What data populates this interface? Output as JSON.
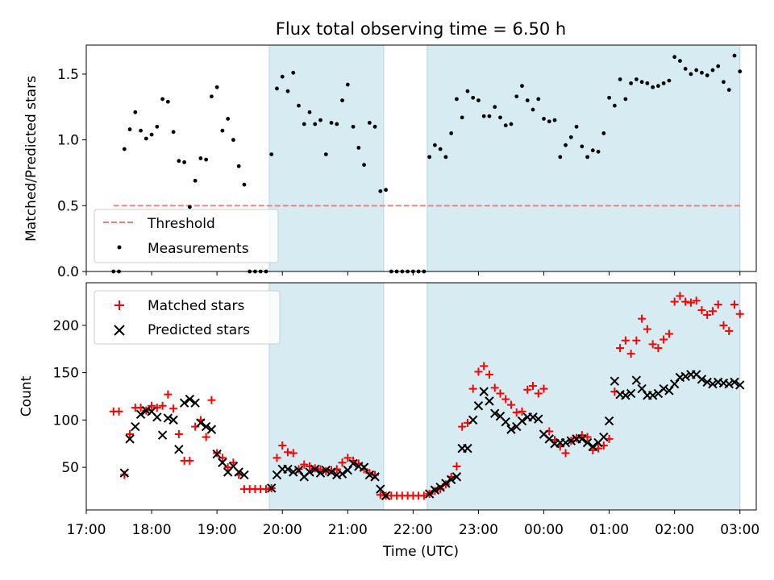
{
  "title": "Flux total observing time = 6.50 h",
  "chart_data": [
    {
      "type": "scatter",
      "panel": "top",
      "ylabel": "Matched/Predicted stars",
      "xlabel": "",
      "xlim": [
        "17:00",
        "03:15"
      ],
      "ylim": [
        0,
        1.72
      ],
      "yticks": [
        0.0,
        0.5,
        1.0,
        1.5
      ],
      "ytick_labels": [
        "0.0",
        "0.5",
        "1.0",
        "1.5"
      ],
      "threshold": 0.5,
      "legend_location": "lower-left",
      "legend": [
        {
          "label": "Threshold",
          "kind": "dashed-line",
          "color": "#f08080"
        },
        {
          "label": "Measurements",
          "kind": "dot",
          "color": "#000000"
        }
      ],
      "shaded_intervals": [
        [
          "19:48",
          "21:33"
        ],
        [
          "22:13",
          "03:00"
        ]
      ],
      "series": [
        {
          "name": "Measurements",
          "x": [
            "17:25",
            "17:30",
            "17:35",
            "17:40",
            "17:45",
            "17:50",
            "17:55",
            "18:00",
            "18:05",
            "18:10",
            "18:15",
            "18:20",
            "18:25",
            "18:30",
            "18:35",
            "18:40",
            "18:45",
            "18:50",
            "18:55",
            "19:00",
            "19:05",
            "19:10",
            "19:15",
            "19:20",
            "19:25",
            "19:30",
            "19:35",
            "19:40",
            "19:45",
            "19:50",
            "19:55",
            "20:00",
            "20:05",
            "20:10",
            "20:15",
            "20:20",
            "20:25",
            "20:30",
            "20:35",
            "20:40",
            "20:45",
            "20:50",
            "20:55",
            "21:00",
            "21:05",
            "21:10",
            "21:15",
            "21:20",
            "21:25",
            "21:30",
            "21:35",
            "21:40",
            "21:45",
            "21:50",
            "21:55",
            "22:00",
            "22:05",
            "22:10",
            "22:15",
            "22:20",
            "22:25",
            "22:30",
            "22:35",
            "22:40",
            "22:45",
            "22:50",
            "22:55",
            "23:00",
            "23:05",
            "23:10",
            "23:15",
            "23:20",
            "23:25",
            "23:30",
            "23:35",
            "23:40",
            "23:45",
            "23:50",
            "23:55",
            "00:00",
            "00:05",
            "00:10",
            "00:15",
            "00:20",
            "00:25",
            "00:30",
            "00:35",
            "00:40",
            "00:45",
            "00:50",
            "00:55",
            "01:00",
            "01:05",
            "01:10",
            "01:15",
            "01:20",
            "01:25",
            "01:30",
            "01:35",
            "01:40",
            "01:45",
            "01:50",
            "01:55",
            "02:00",
            "02:05",
            "02:10",
            "02:15",
            "02:20",
            "02:25",
            "02:30",
            "02:35",
            "02:40",
            "02:45",
            "02:50",
            "02:55",
            "03:00"
          ],
          "y": [
            0.0,
            0.0,
            0.93,
            1.08,
            1.21,
            1.07,
            1.01,
            1.04,
            1.1,
            1.31,
            1.29,
            1.06,
            0.84,
            0.83,
            0.49,
            0.69,
            0.86,
            0.85,
            1.33,
            1.4,
            1.07,
            1.16,
            1.0,
            0.8,
            0.66,
            0.0,
            0.0,
            0.0,
            0.0,
            0.89,
            1.39,
            1.48,
            1.37,
            1.51,
            1.26,
            1.12,
            1.21,
            1.12,
            1.15,
            0.89,
            1.13,
            1.12,
            1.3,
            1.42,
            1.1,
            0.94,
            0.81,
            1.13,
            1.1,
            0.61,
            0.62,
            0.0,
            0.0,
            0.0,
            0.0,
            0.0,
            0.0,
            0.0,
            0.87,
            0.96,
            0.93,
            0.87,
            1.05,
            1.31,
            1.17,
            1.37,
            1.32,
            1.3,
            1.18,
            1.18,
            1.25,
            1.17,
            1.11,
            1.12,
            1.33,
            1.41,
            1.3,
            1.23,
            1.31,
            1.16,
            1.14,
            1.15,
            0.87,
            0.96,
            1.02,
            1.1,
            0.95,
            0.87,
            0.92,
            0.91,
            1.05,
            1.32,
            1.26,
            1.46,
            1.31,
            1.43,
            1.46,
            1.44,
            1.43,
            1.4,
            1.41,
            1.43,
            1.45,
            1.63,
            1.6,
            1.54,
            1.5,
            1.53,
            1.51,
            1.49,
            1.53,
            1.56,
            1.44,
            1.38,
            1.64,
            1.52
          ]
        }
      ]
    },
    {
      "type": "scatter",
      "panel": "bottom",
      "ylabel": "Count",
      "xlabel": "Time (UTC)",
      "xlim": [
        "17:00",
        "03:15"
      ],
      "ylim": [
        5,
        245
      ],
      "yticks": [
        50,
        100,
        150,
        200
      ],
      "ytick_labels": [
        "50",
        "100",
        "150",
        "200"
      ],
      "xticks": [
        "17:00",
        "18:00",
        "19:00",
        "20:00",
        "21:00",
        "22:00",
        "23:00",
        "00:00",
        "01:00",
        "02:00",
        "03:00"
      ],
      "legend_location": "upper-left",
      "legend": [
        {
          "label": "Matched stars",
          "kind": "plus",
          "color": "#ff0000"
        },
        {
          "label": "Predicted stars",
          "kind": "x",
          "color": "#000000"
        }
      ],
      "shaded_intervals": [
        [
          "19:48",
          "21:33"
        ],
        [
          "22:13",
          "03:00"
        ]
      ],
      "series": [
        {
          "name": "Matched stars",
          "x": [
            "17:25",
            "17:30",
            "17:35",
            "17:40",
            "17:45",
            "17:50",
            "17:55",
            "18:00",
            "18:05",
            "18:10",
            "18:15",
            "18:20",
            "18:25",
            "18:30",
            "18:35",
            "18:40",
            "18:45",
            "18:50",
            "18:55",
            "19:00",
            "19:05",
            "19:10",
            "19:15",
            "19:20",
            "19:25",
            "19:30",
            "19:35",
            "19:40",
            "19:45",
            "19:50",
            "19:55",
            "20:00",
            "20:05",
            "20:10",
            "20:15",
            "20:20",
            "20:25",
            "20:30",
            "20:35",
            "20:40",
            "20:45",
            "20:50",
            "20:55",
            "21:00",
            "21:05",
            "21:10",
            "21:15",
            "21:20",
            "21:25",
            "21:30",
            "21:35",
            "21:40",
            "21:45",
            "21:50",
            "21:55",
            "22:00",
            "22:05",
            "22:10",
            "22:15",
            "22:20",
            "22:25",
            "22:30",
            "22:35",
            "22:40",
            "22:45",
            "22:50",
            "22:55",
            "23:00",
            "23:05",
            "23:10",
            "23:15",
            "23:20",
            "23:25",
            "23:30",
            "23:35",
            "23:40",
            "23:45",
            "23:50",
            "23:55",
            "00:00",
            "00:05",
            "00:10",
            "00:15",
            "00:20",
            "00:25",
            "00:30",
            "00:35",
            "00:40",
            "00:45",
            "00:50",
            "00:55",
            "01:00",
            "01:05",
            "01:10",
            "01:15",
            "01:20",
            "01:25",
            "01:30",
            "01:35",
            "01:40",
            "01:45",
            "01:50",
            "01:55",
            "02:00",
            "02:05",
            "02:10",
            "02:15",
            "02:20",
            "02:25",
            "02:30",
            "02:35",
            "02:40",
            "02:45",
            "02:50",
            "02:55",
            "03:00"
          ],
          "y": [
            109,
            109,
            42,
            85,
            113,
            113,
            110,
            115,
            113,
            115,
            127,
            112,
            85,
            57,
            57,
            93,
            100,
            82,
            121,
            65,
            60,
            50,
            55,
            42,
            27,
            27,
            27,
            27,
            27,
            28,
            60,
            73,
            66,
            65,
            48,
            53,
            51,
            49,
            48,
            46,
            47,
            48,
            55,
            60,
            57,
            54,
            48,
            44,
            42,
            21,
            20,
            20,
            20,
            20,
            20,
            20,
            20,
            20,
            22,
            25,
            27,
            32,
            40,
            51,
            93,
            97,
            133,
            151,
            157,
            148,
            134,
            128,
            122,
            116,
            108,
            109,
            132,
            136,
            128,
            133,
            88,
            79,
            72,
            65,
            78,
            81,
            84,
            82,
            68,
            70,
            73,
            80,
            130,
            176,
            184,
            170,
            184,
            207,
            196,
            180,
            176,
            185,
            191,
            225,
            231,
            225,
            224,
            226,
            216,
            211,
            215,
            222,
            200,
            194,
            222,
            212
          ]
        },
        {
          "name": "Predicted stars",
          "x": [
            "17:25",
            "17:30",
            "17:35",
            "17:40",
            "17:45",
            "17:50",
            "17:55",
            "18:00",
            "18:05",
            "18:10",
            "18:15",
            "18:20",
            "18:25",
            "18:30",
            "18:35",
            "18:40",
            "18:45",
            "18:50",
            "18:55",
            "19:00",
            "19:05",
            "19:10",
            "19:15",
            "19:20",
            "19:25",
            "19:30",
            "19:35",
            "19:40",
            "19:45",
            "19:50",
            "19:55",
            "20:00",
            "20:05",
            "20:10",
            "20:15",
            "20:20",
            "20:25",
            "20:30",
            "20:35",
            "20:40",
            "20:45",
            "20:50",
            "20:55",
            "21:00",
            "21:05",
            "21:10",
            "21:15",
            "21:20",
            "21:25",
            "21:30",
            "21:35",
            "21:40",
            "21:45",
            "21:50",
            "21:55",
            "22:00",
            "22:05",
            "22:10",
            "22:15",
            "22:20",
            "22:25",
            "22:30",
            "22:35",
            "22:40",
            "22:45",
            "22:50",
            "22:55",
            "23:00",
            "23:05",
            "23:10",
            "23:15",
            "23:20",
            "23:25",
            "23:30",
            "23:35",
            "23:40",
            "23:45",
            "23:50",
            "23:55",
            "00:00",
            "00:05",
            "00:10",
            "00:15",
            "00:20",
            "00:25",
            "00:30",
            "00:35",
            "00:40",
            "00:45",
            "00:50",
            "00:55",
            "01:00",
            "01:05",
            "01:10",
            "01:15",
            "01:20",
            "01:25",
            "01:30",
            "01:35",
            "01:40",
            "01:45",
            "01:50",
            "01:55",
            "02:00",
            "02:05",
            "02:10",
            "02:15",
            "02:20",
            "02:25",
            "02:30",
            "02:35",
            "02:40",
            "02:45",
            "02:50",
            "02:55",
            "03:00"
          ],
          "y": [
            null,
            null,
            44,
            80,
            93,
            106,
            110,
            109,
            103,
            84,
            102,
            100,
            69,
            118,
            122,
            118,
            97,
            93,
            90,
            64,
            55,
            45,
            51,
            45,
            42,
            null,
            null,
            null,
            null,
            28,
            42,
            48,
            48,
            45,
            47,
            40,
            45,
            48,
            44,
            47,
            45,
            42,
            43,
            47,
            54,
            51,
            50,
            42,
            40,
            27,
            20,
            null,
            null,
            null,
            null,
            null,
            null,
            null,
            22,
            26,
            29,
            33,
            37,
            40,
            70,
            70,
            100,
            115,
            130,
            120,
            107,
            104,
            98,
            90,
            93,
            99,
            103,
            103,
            101,
            85,
            80,
            75,
            76,
            76,
            78,
            80,
            80,
            76,
            72,
            76,
            82,
            99,
            141,
            127,
            126,
            128,
            142,
            133,
            126,
            126,
            128,
            133,
            131,
            138,
            145,
            146,
            148,
            148,
            143,
            140,
            138,
            140,
            139,
            138,
            140,
            137
          ]
        }
      ]
    }
  ]
}
